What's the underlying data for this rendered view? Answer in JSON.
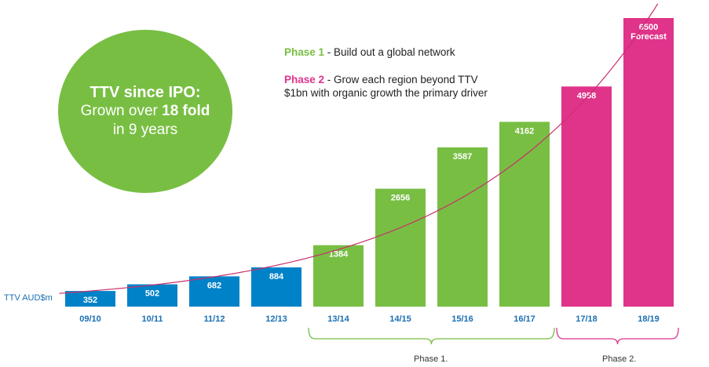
{
  "chart_data": {
    "type": "bar",
    "categories": [
      "09/10",
      "10/11",
      "11/12",
      "12/13",
      "13/14",
      "14/15",
      "15/16",
      "16/17",
      "17/18",
      "18/19"
    ],
    "values": [
      352,
      502,
      682,
      884,
      1384,
      2656,
      3587,
      4162,
      4958,
      6500
    ],
    "bar_labels": [
      "352",
      "502",
      "682",
      "884",
      "1384",
      "2656",
      "3587",
      "4162",
      "4958",
      "6500"
    ],
    "forecast_label": "Forecast",
    "ylabel": "TTV AUD$m",
    "ylim": [
      0,
      6500
    ],
    "grid": false,
    "bar_colors": [
      "#0082c8",
      "#0082c8",
      "#0082c8",
      "#0082c8",
      "#78be43",
      "#78be43",
      "#78be43",
      "#78be43",
      "#e0338a",
      "#e0338a"
    ],
    "trend_line": {
      "type": "exponential",
      "color": "#c8306e"
    },
    "phase_groups": [
      {
        "label": "Phase 1.",
        "from": "13/14",
        "to": "16/17",
        "color": "#78be43"
      },
      {
        "label": "Phase 2.",
        "from": "17/18",
        "to": "18/19",
        "color": "#e0338a"
      }
    ]
  },
  "callout": {
    "title": "TTV since IPO:",
    "line1_pre": "Grown over ",
    "line1_bold": "18 fold",
    "line2": "in 9 years"
  },
  "legend": {
    "phase1_label": "Phase 1",
    "phase1_text": " - Build out a global network",
    "phase2_label": "Phase 2",
    "phase2_text_1": " - Grow each region beyond TTV",
    "phase2_text_2": "$1bn with organic growth the primary driver"
  },
  "colors": {
    "blue": "#0082c8",
    "green": "#78be43",
    "pink": "#e0338a",
    "tick": "#1a6fb3"
  }
}
